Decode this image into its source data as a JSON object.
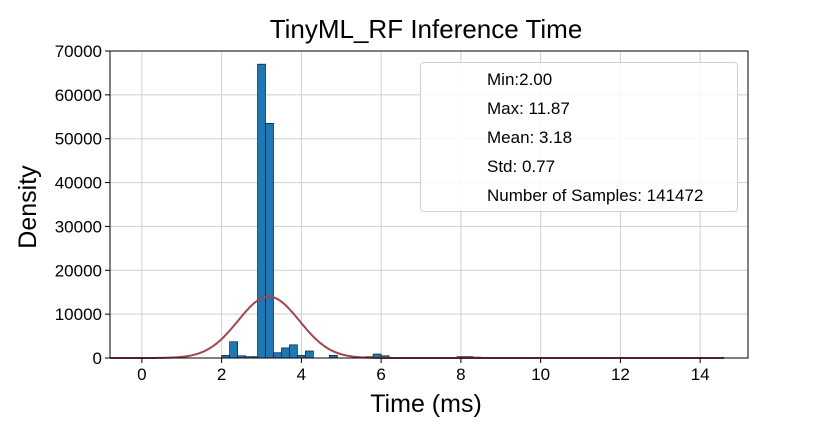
{
  "chart_data": {
    "type": "bar",
    "title": "TinyML_RF Inference Time",
    "xlabel": "Time (ms)",
    "ylabel": "Density",
    "xlim": [
      -0.8,
      15.2
    ],
    "ylim": [
      0,
      70000
    ],
    "xticks": [
      0,
      2,
      4,
      6,
      8,
      10,
      12,
      14
    ],
    "yticks": [
      0,
      10000,
      20000,
      30000,
      40000,
      50000,
      60000,
      70000
    ],
    "grid": true,
    "bar_color": "#1f77b4",
    "curve_color": "#a0464f",
    "bin_width": 0.2,
    "bins": [
      {
        "x0": 2.0,
        "value": 600
      },
      {
        "x0": 2.2,
        "value": 3700
      },
      {
        "x0": 2.4,
        "value": 500
      },
      {
        "x0": 2.6,
        "value": 300
      },
      {
        "x0": 2.8,
        "value": 300
      },
      {
        "x0": 2.9,
        "value": 67000
      },
      {
        "x0": 3.1,
        "value": 53500
      },
      {
        "x0": 3.3,
        "value": 1200
      },
      {
        "x0": 3.5,
        "value": 2300
      },
      {
        "x0": 3.7,
        "value": 3000
      },
      {
        "x0": 3.9,
        "value": 600
      },
      {
        "x0": 4.1,
        "value": 1600
      },
      {
        "x0": 4.7,
        "value": 600
      },
      {
        "x0": 5.6,
        "value": 300
      },
      {
        "x0": 5.8,
        "value": 900
      },
      {
        "x0": 6.0,
        "value": 500
      },
      {
        "x0": 7.9,
        "value": 300
      },
      {
        "x0": 8.1,
        "value": 300
      },
      {
        "x0": 8.3,
        "value": 200
      }
    ],
    "density_curve": {
      "mean": 3.18,
      "std": 0.77,
      "peak": 14000,
      "x_range": [
        -0.8,
        14.6
      ]
    },
    "stats": {
      "min": "Min:2.00",
      "max": "Max: 11.87",
      "mean": "Mean: 3.18",
      "std": "Std: 0.77",
      "samples": "Number of Samples: 141472"
    }
  }
}
